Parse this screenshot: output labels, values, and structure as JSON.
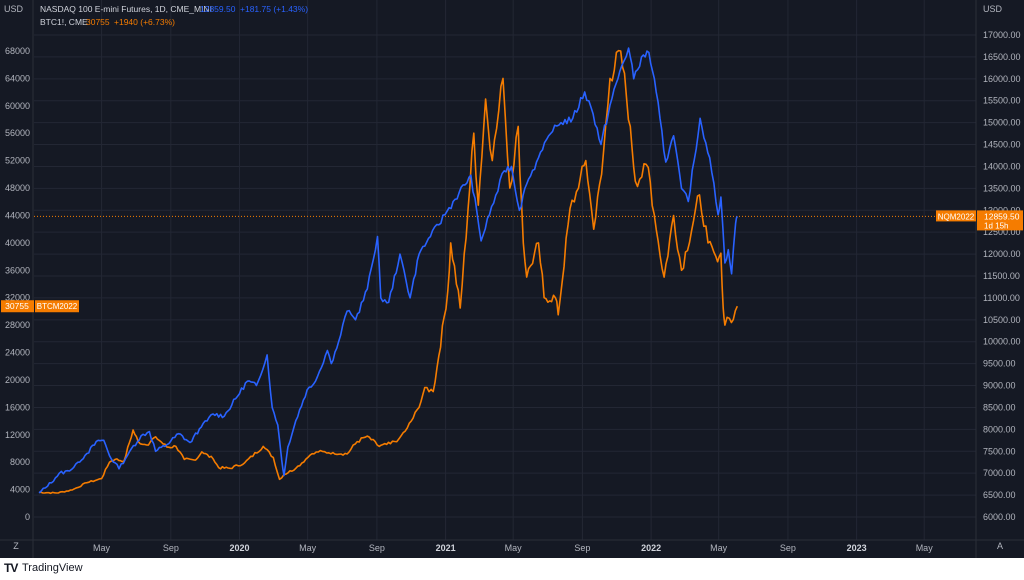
{
  "footer": {
    "logo": "TV",
    "brand": "TradingView"
  },
  "colors": {
    "background": "#151924",
    "grid": "#232734",
    "axis_text": "#b2b5be",
    "ndx": "#2962ff",
    "btc": "#f57c00",
    "price_line": "#f57c00"
  },
  "chart_data": {
    "type": "line",
    "legend_position": "top-left",
    "grid": true,
    "legend": [
      {
        "label": "NASDAQ 100 E-mini Futures, 1D, CME_MINI",
        "value": "12859.50",
        "change": "+181.75 (+1.43%)",
        "color": "#2962ff"
      },
      {
        "label": "BTC1!, CME",
        "value": "30755",
        "change": "+1940 (+6.73%)",
        "color": "#f57c00"
      }
    ],
    "left_axis": {
      "unit": "USD",
      "min": 0,
      "max": 72000,
      "ticks": [
        "68000",
        "64000",
        "60000",
        "56000",
        "52000",
        "48000",
        "44000",
        "40000",
        "36000",
        "32000",
        "28000",
        "24000",
        "20000",
        "16000",
        "12000",
        "8000",
        "4000",
        "0"
      ]
    },
    "right_axis": {
      "unit": "USD",
      "min": 6000,
      "max": 17000,
      "ticks": [
        "17000.00",
        "16500.00",
        "16000.00",
        "15500.00",
        "15000.00",
        "14500.00",
        "14000.00",
        "13500.00",
        "13000.00",
        "12500.00",
        "12000.00",
        "11500.00",
        "11000.00",
        "10500.00",
        "10000.00",
        "9500.00",
        "9000.00",
        "8500.00",
        "8000.00",
        "7500.00",
        "7000.00",
        "6500.00",
        "6000.00"
      ]
    },
    "x_axis": {
      "start": "2019-01-01",
      "end": "2023-08-01",
      "ticks": [
        {
          "label": "2",
          "date": "2019-01-01"
        },
        {
          "label": "May",
          "date": "2019-05-01"
        },
        {
          "label": "Sep",
          "date": "2019-09-01"
        },
        {
          "label": "2020",
          "date": "2020-01-01"
        },
        {
          "label": "May",
          "date": "2020-05-01"
        },
        {
          "label": "Sep",
          "date": "2020-09-01"
        },
        {
          "label": "2021",
          "date": "2021-01-01"
        },
        {
          "label": "May",
          "date": "2021-05-01"
        },
        {
          "label": "Sep",
          "date": "2021-09-01"
        },
        {
          "label": "2022",
          "date": "2022-01-01"
        },
        {
          "label": "May",
          "date": "2022-05-01"
        },
        {
          "label": "Sep",
          "date": "2022-09-01"
        },
        {
          "label": "2023",
          "date": "2023-01-01"
        },
        {
          "label": "May",
          "date": "2023-05-01"
        }
      ]
    },
    "series": [
      {
        "name": "NASDAQ 100 E-mini Futures",
        "axis": "right",
        "color": "#2962ff",
        "points": [
          [
            "2019-01-10",
            6550
          ],
          [
            "2019-01-25",
            6700
          ],
          [
            "2019-02-15",
            7000
          ],
          [
            "2019-03-05",
            7050
          ],
          [
            "2019-03-20",
            7250
          ],
          [
            "2019-04-05",
            7450
          ],
          [
            "2019-04-25",
            7750
          ],
          [
            "2019-05-05",
            7750
          ],
          [
            "2019-05-15",
            7400
          ],
          [
            "2019-06-01",
            7100
          ],
          [
            "2019-06-20",
            7500
          ],
          [
            "2019-07-10",
            7850
          ],
          [
            "2019-07-25",
            7950
          ],
          [
            "2019-08-05",
            7500
          ],
          [
            "2019-08-25",
            7650
          ],
          [
            "2019-09-15",
            7900
          ],
          [
            "2019-10-05",
            7700
          ],
          [
            "2019-10-25",
            8050
          ],
          [
            "2019-11-15",
            8350
          ],
          [
            "2019-12-05",
            8300
          ],
          [
            "2019-12-25",
            8700
          ],
          [
            "2020-01-15",
            9100
          ],
          [
            "2020-01-31",
            9000
          ],
          [
            "2020-02-19",
            9700
          ],
          [
            "2020-02-28",
            8500
          ],
          [
            "2020-03-09",
            8100
          ],
          [
            "2020-03-16",
            7300
          ],
          [
            "2020-03-20",
            6950
          ],
          [
            "2020-03-27",
            7600
          ],
          [
            "2020-04-10",
            8200
          ],
          [
            "2020-04-30",
            8900
          ],
          [
            "2020-05-15",
            9100
          ],
          [
            "2020-06-05",
            9800
          ],
          [
            "2020-06-12",
            9500
          ],
          [
            "2020-06-25",
            10000
          ],
          [
            "2020-07-10",
            10700
          ],
          [
            "2020-07-25",
            10500
          ],
          [
            "2020-08-15",
            11200
          ],
          [
            "2020-09-02",
            12400
          ],
          [
            "2020-09-08",
            11000
          ],
          [
            "2020-09-22",
            10900
          ],
          [
            "2020-10-12",
            12000
          ],
          [
            "2020-10-30",
            11000
          ],
          [
            "2020-11-15",
            12000
          ],
          [
            "2020-12-05",
            12400
          ],
          [
            "2020-12-31",
            12900
          ],
          [
            "2021-01-25",
            13400
          ],
          [
            "2021-02-15",
            13800
          ],
          [
            "2021-03-05",
            12300
          ],
          [
            "2021-03-20",
            12900
          ],
          [
            "2021-04-15",
            13900
          ],
          [
            "2021-04-28",
            14000
          ],
          [
            "2021-05-12",
            13000
          ],
          [
            "2021-05-25",
            13600
          ],
          [
            "2021-06-15",
            14200
          ],
          [
            "2021-07-10",
            14800
          ],
          [
            "2021-07-25",
            15000
          ],
          [
            "2021-08-15",
            15100
          ],
          [
            "2021-09-05",
            15700
          ],
          [
            "2021-09-20",
            15200
          ],
          [
            "2021-10-04",
            14500
          ],
          [
            "2021-10-20",
            15400
          ],
          [
            "2021-11-10",
            16300
          ],
          [
            "2021-11-22",
            16700
          ],
          [
            "2021-12-01",
            16000
          ],
          [
            "2021-12-15",
            16500
          ],
          [
            "2021-12-28",
            16600
          ],
          [
            "2022-01-10",
            15700
          ],
          [
            "2022-01-27",
            14100
          ],
          [
            "2022-02-10",
            14700
          ],
          [
            "2022-02-24",
            13500
          ],
          [
            "2022-03-08",
            13200
          ],
          [
            "2022-03-29",
            15100
          ],
          [
            "2022-04-15",
            14200
          ],
          [
            "2022-04-30",
            12900
          ],
          [
            "2022-05-05",
            13300
          ],
          [
            "2022-05-12",
            11800
          ],
          [
            "2022-05-18",
            12100
          ],
          [
            "2022-05-24",
            11550
          ],
          [
            "2022-05-31",
            12700
          ],
          [
            "2022-06-03",
            12860
          ]
        ]
      },
      {
        "name": "BTC1!, CME",
        "axis": "left",
        "color": "#f57c00",
        "points": [
          [
            "2019-01-10",
            3600
          ],
          [
            "2019-02-10",
            3500
          ],
          [
            "2019-03-10",
            3950
          ],
          [
            "2019-04-05",
            5000
          ],
          [
            "2019-05-01",
            5600
          ],
          [
            "2019-05-15",
            8000
          ],
          [
            "2019-05-25",
            8400
          ],
          [
            "2019-06-10",
            8200
          ],
          [
            "2019-06-26",
            12700
          ],
          [
            "2019-07-05",
            11000
          ],
          [
            "2019-07-20",
            10500
          ],
          [
            "2019-08-05",
            11700
          ],
          [
            "2019-08-25",
            10200
          ],
          [
            "2019-09-10",
            10300
          ],
          [
            "2019-09-25",
            8400
          ],
          [
            "2019-10-15",
            8300
          ],
          [
            "2019-10-26",
            9500
          ],
          [
            "2019-11-15",
            8500
          ],
          [
            "2019-11-25",
            7200
          ],
          [
            "2019-12-15",
            7100
          ],
          [
            "2020-01-10",
            7900
          ],
          [
            "2020-02-12",
            10300
          ],
          [
            "2020-03-01",
            8700
          ],
          [
            "2020-03-12",
            5500
          ],
          [
            "2020-03-20",
            6200
          ],
          [
            "2020-04-10",
            7100
          ],
          [
            "2020-05-05",
            9000
          ],
          [
            "2020-05-20",
            9500
          ],
          [
            "2020-06-15",
            9400
          ],
          [
            "2020-07-10",
            9200
          ],
          [
            "2020-07-28",
            11000
          ],
          [
            "2020-08-15",
            11800
          ],
          [
            "2020-09-05",
            10300
          ],
          [
            "2020-09-25",
            10700
          ],
          [
            "2020-10-10",
            11400
          ],
          [
            "2020-10-25",
            13000
          ],
          [
            "2020-11-15",
            16000
          ],
          [
            "2020-11-25",
            18900
          ],
          [
            "2020-12-10",
            18300
          ],
          [
            "2020-12-20",
            23500
          ],
          [
            "2021-01-05",
            33000
          ],
          [
            "2021-01-10",
            40000
          ],
          [
            "2021-01-27",
            30500
          ],
          [
            "2021-02-10",
            45000
          ],
          [
            "2021-02-20",
            56000
          ],
          [
            "2021-02-28",
            45500
          ],
          [
            "2021-03-13",
            61000
          ],
          [
            "2021-03-25",
            52000
          ],
          [
            "2021-04-13",
            64000
          ],
          [
            "2021-04-25",
            48000
          ],
          [
            "2021-05-10",
            57000
          ],
          [
            "2021-05-19",
            40000
          ],
          [
            "2021-05-25",
            35000
          ],
          [
            "2021-06-15",
            40000
          ],
          [
            "2021-06-25",
            32000
          ],
          [
            "2021-07-15",
            32000
          ],
          [
            "2021-07-20",
            29500
          ],
          [
            "2021-08-10",
            45000
          ],
          [
            "2021-08-25",
            48000
          ],
          [
            "2021-09-07",
            52000
          ],
          [
            "2021-09-21",
            42000
          ],
          [
            "2021-10-05",
            50000
          ],
          [
            "2021-10-20",
            64000
          ],
          [
            "2021-11-08",
            68000
          ],
          [
            "2021-11-25",
            57000
          ],
          [
            "2021-12-04",
            49000
          ],
          [
            "2021-12-27",
            51000
          ],
          [
            "2022-01-10",
            42000
          ],
          [
            "2022-01-24",
            35000
          ],
          [
            "2022-02-10",
            44000
          ],
          [
            "2022-02-24",
            36000
          ],
          [
            "2022-03-28",
            47000
          ],
          [
            "2022-04-12",
            40000
          ],
          [
            "2022-04-26",
            38000
          ],
          [
            "2022-05-05",
            38500
          ],
          [
            "2022-05-09",
            30500
          ],
          [
            "2022-05-12",
            28000
          ],
          [
            "2022-05-20",
            29000
          ],
          [
            "2022-05-27",
            28800
          ],
          [
            "2022-06-03",
            30755
          ]
        ]
      }
    ],
    "price_labels": [
      {
        "text": "12859.50",
        "series": "NASDAQ 100 E-mini Futures",
        "axis": "right"
      },
      {
        "text": "1d 15h",
        "series": "NASDAQ 100 E-mini Futures",
        "axis": "right"
      },
      {
        "text": "NQM2022",
        "series": "NASDAQ 100 E-mini Futures",
        "axis": "right"
      },
      {
        "text": "30755",
        "series": "BTC1!, CME",
        "axis": "left"
      },
      {
        "text": "BTCM2022",
        "series": "BTC1!, CME",
        "axis": "left"
      }
    ],
    "corner_labels": {
      "bottom_left": "Z",
      "bottom_right": "A"
    }
  }
}
